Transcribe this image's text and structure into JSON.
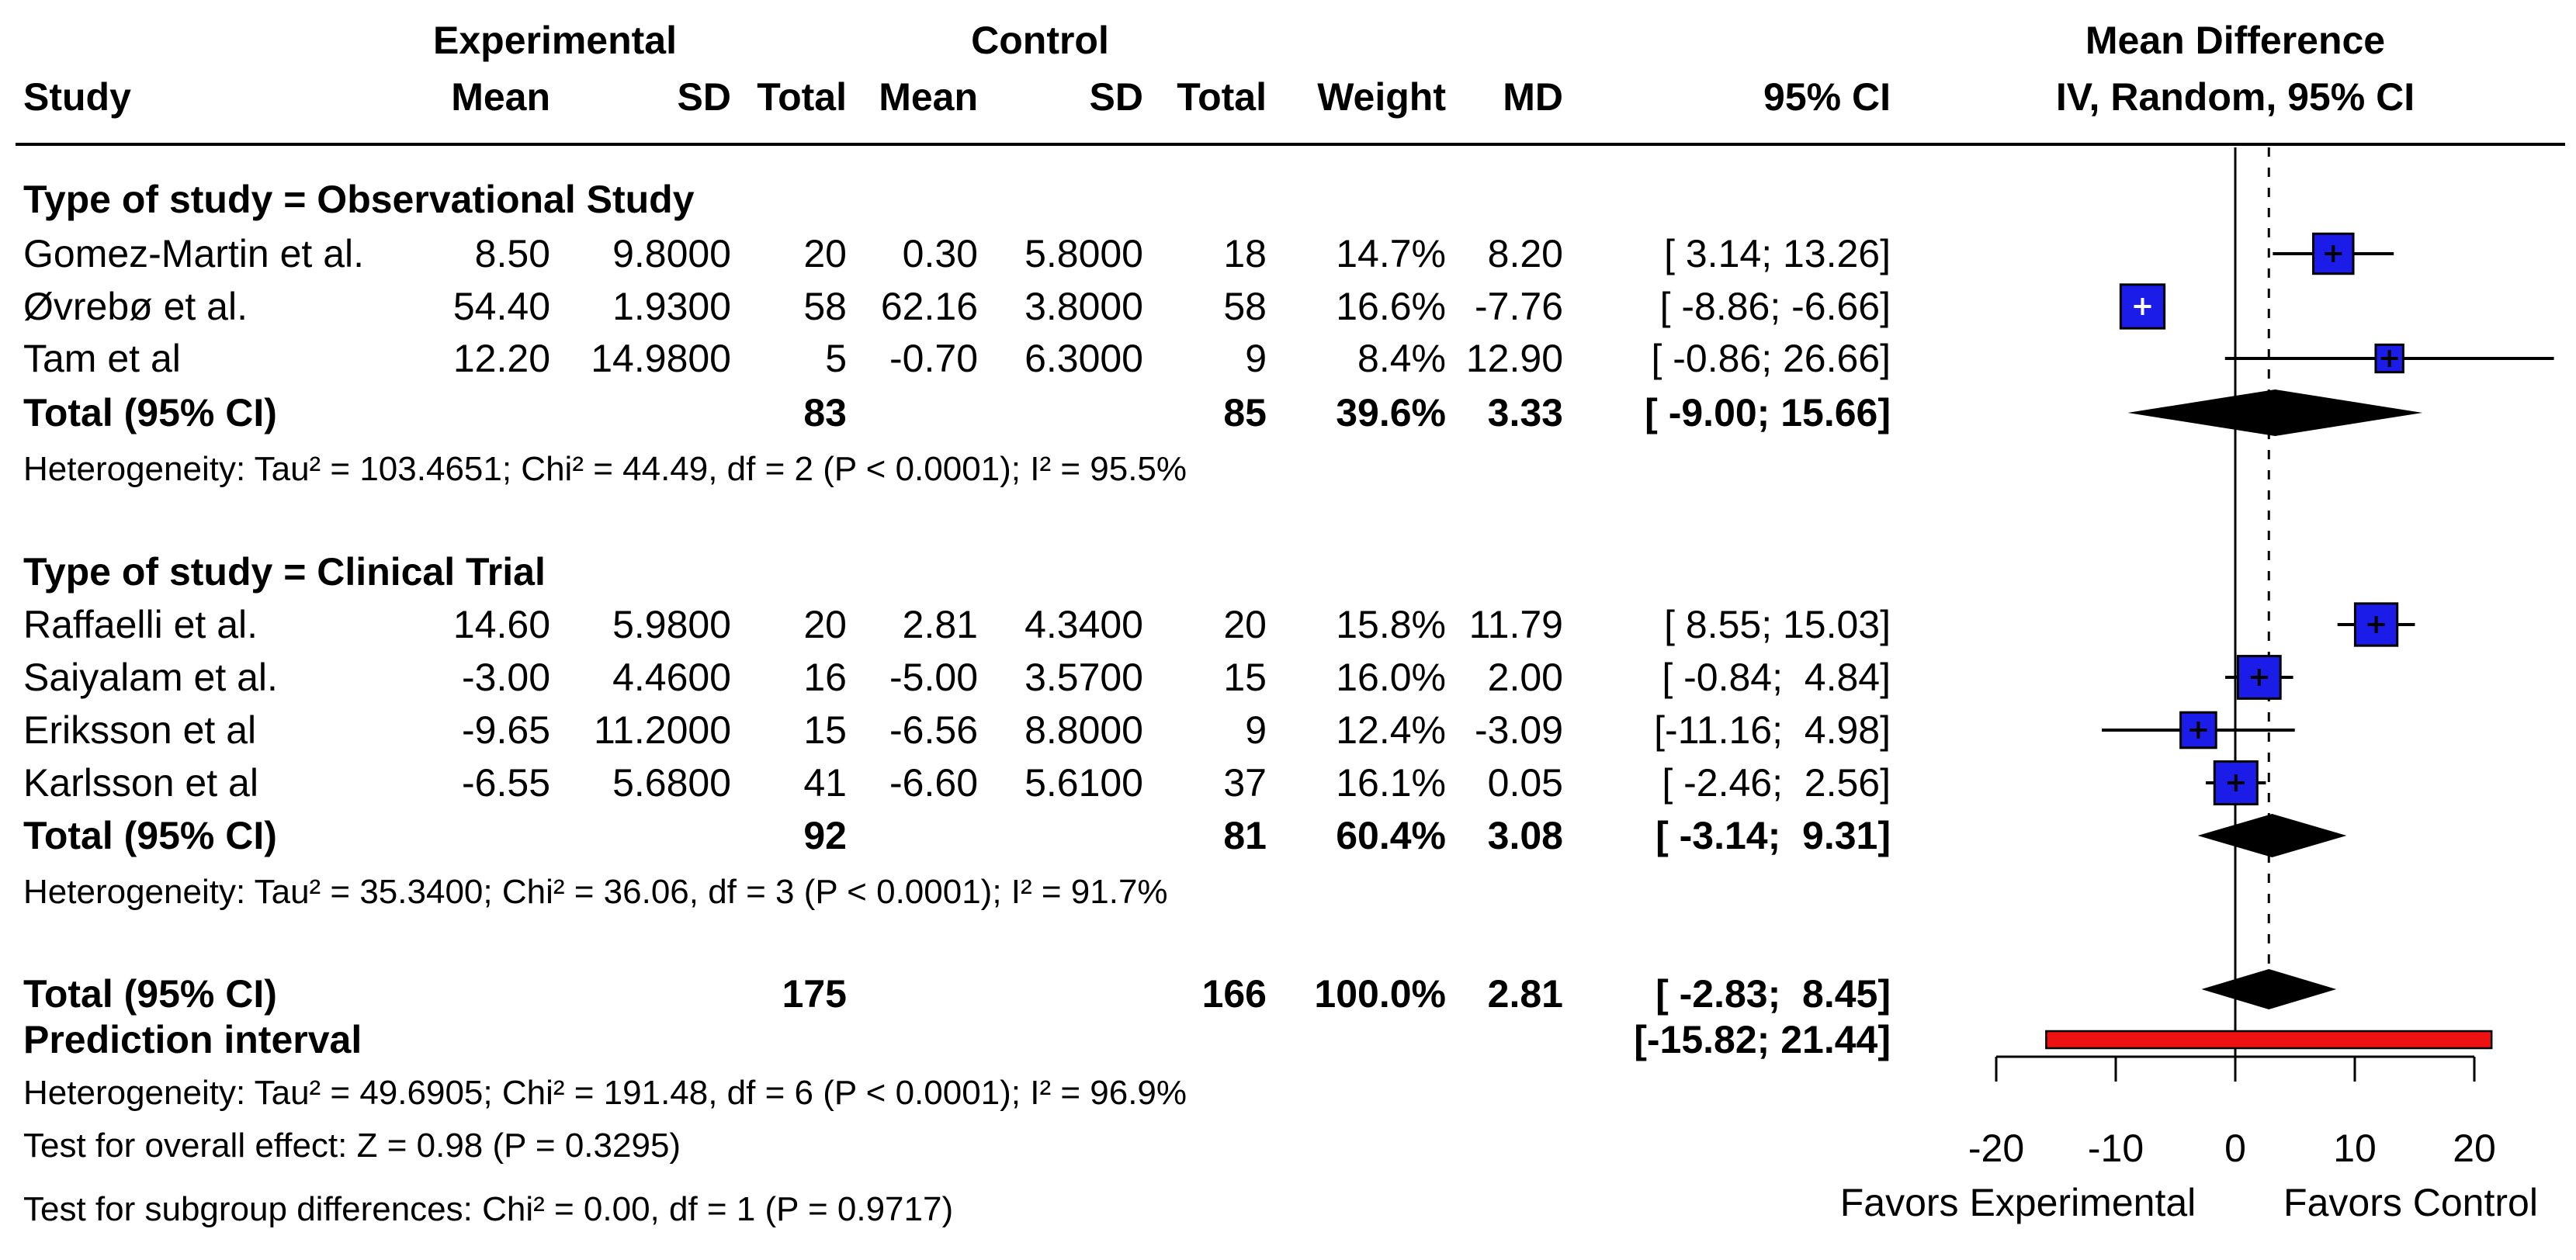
{
  "header": {
    "group_experimental": "Experimental",
    "group_control": "Control",
    "effect_title": "Mean Difference",
    "effect_subtitle": "IV, Random, 95% CI",
    "col_study": "Study",
    "col_mean": "Mean",
    "col_sd": "SD",
    "col_total": "Total",
    "col_mean2": "Mean",
    "col_sd2": "SD",
    "col_total2": "Total",
    "col_weight": "Weight",
    "col_md": "MD",
    "col_ci": "95% CI"
  },
  "groups": [
    {
      "title": "Type of study = Observational Study",
      "studies": [
        {
          "name": "Gomez-Martin et al.",
          "mean_e": "8.50",
          "sd_e": "9.8000",
          "n_e": "20",
          "mean_c": "0.30",
          "sd_c": "5.8000",
          "n_c": "18",
          "weight": "14.7%",
          "md": "8.20",
          "ci": "[ 3.14; 13.26]"
        },
        {
          "name": "Øvrebø et al.",
          "mean_e": "54.40",
          "sd_e": "1.9300",
          "n_e": "58",
          "mean_c": "62.16",
          "sd_c": "3.8000",
          "n_c": "58",
          "weight": "16.6%",
          "md": "-7.76",
          "ci": "[ -8.86; -6.66]"
        },
        {
          "name": "Tam et al",
          "mean_e": "12.20",
          "sd_e": "14.9800",
          "n_e": "5",
          "mean_c": "-0.70",
          "sd_c": "6.3000",
          "n_c": "9",
          "weight": "8.4%",
          "md": "12.90",
          "ci": "[ -0.86; 26.66]"
        }
      ],
      "total": {
        "label": "Total (95% CI)",
        "n_e": "83",
        "n_c": "85",
        "weight": "39.6%",
        "md": "3.33",
        "ci": "[ -9.00; 15.66]"
      },
      "heterogeneity": "Heterogeneity: Tau² = 103.4651; Chi² = 44.49, df = 2 (P < 0.0001); I² = 95.5%"
    },
    {
      "title": "Type of study = Clinical Trial",
      "studies": [
        {
          "name": "Raffaelli et al.",
          "mean_e": "14.60",
          "sd_e": "5.9800",
          "n_e": "20",
          "mean_c": "2.81",
          "sd_c": "4.3400",
          "n_c": "20",
          "weight": "15.8%",
          "md": "11.79",
          "ci": "[ 8.55; 15.03]"
        },
        {
          "name": "Saiyalam et al.",
          "mean_e": "-3.00",
          "sd_e": "4.4600",
          "n_e": "16",
          "mean_c": "-5.00",
          "sd_c": "3.5700",
          "n_c": "15",
          "weight": "16.0%",
          "md": "2.00",
          "ci": "[ -0.84;  4.84]"
        },
        {
          "name": "Eriksson et al",
          "mean_e": "-9.65",
          "sd_e": "11.2000",
          "n_e": "15",
          "mean_c": "-6.56",
          "sd_c": "8.8000",
          "n_c": "9",
          "weight": "12.4%",
          "md": "-3.09",
          "ci": "[-11.16;  4.98]"
        },
        {
          "name": "Karlsson et al",
          "mean_e": "-6.55",
          "sd_e": "5.6800",
          "n_e": "41",
          "mean_c": "-6.60",
          "sd_c": "5.6100",
          "n_c": "37",
          "weight": "16.1%",
          "md": "0.05",
          "ci": "[ -2.46;  2.56]"
        }
      ],
      "total": {
        "label": "Total (95% CI)",
        "n_e": "92",
        "n_c": "81",
        "weight": "60.4%",
        "md": "3.08",
        "ci": "[ -3.14;  9.31]"
      },
      "heterogeneity": "Heterogeneity: Tau² = 35.3400; Chi² = 36.06, df = 3 (P < 0.0001); I² = 91.7%"
    }
  ],
  "overall": {
    "label": "Total (95% CI)",
    "n_e": "175",
    "n_c": "166",
    "weight": "100.0%",
    "md": "2.81",
    "ci": "[ -2.83;  8.45]"
  },
  "prediction": {
    "label": "Prediction interval",
    "ci": "[-15.82; 21.44]"
  },
  "footer": {
    "heterogeneity": "Heterogeneity: Tau² = 49.6905; Chi² = 191.48, df = 6 (P < 0.0001); I² = 96.9%",
    "overall_effect": "Test for overall effect: Z = 0.98 (P = 0.3295)",
    "subgroup_diff": "Test for subgroup differences: Chi² = 0.00, df = 1 (P = 0.9717)"
  },
  "axis": {
    "ticks": [
      "-20",
      "-10",
      "0",
      "10",
      "20"
    ],
    "label_left": "Favors Experimental",
    "label_right": "Favors Control"
  },
  "chart_data": {
    "type": "scatter",
    "subtype": "forest-plot",
    "title": "Mean Difference",
    "xlabel": "IV, Random, 95% CI",
    "x_ticks": [
      -20,
      -10,
      0,
      10,
      20
    ],
    "xlim": [
      -20,
      27
    ],
    "zero_line": 0,
    "overall_line": 2.81,
    "groups": [
      {
        "name": "Observational Study",
        "studies": [
          {
            "name": "Gomez-Martin et al.",
            "md": 8.2,
            "lo": 3.14,
            "hi": 13.26,
            "weight": 14.7
          },
          {
            "name": "Øvrebø et al.",
            "md": -7.76,
            "lo": -8.86,
            "hi": -6.66,
            "weight": 16.6
          },
          {
            "name": "Tam et al",
            "md": 12.9,
            "lo": -0.86,
            "hi": 26.66,
            "weight": 8.4
          }
        ],
        "diamond": {
          "md": 3.33,
          "lo": -9.0,
          "hi": 15.66
        }
      },
      {
        "name": "Clinical Trial",
        "studies": [
          {
            "name": "Raffaelli et al.",
            "md": 11.79,
            "lo": 8.55,
            "hi": 15.03,
            "weight": 15.8
          },
          {
            "name": "Saiyalam et al.",
            "md": 2.0,
            "lo": -0.84,
            "hi": 4.84,
            "weight": 16.0
          },
          {
            "name": "Eriksson et al",
            "md": -3.09,
            "lo": -11.16,
            "hi": 4.98,
            "weight": 12.4
          },
          {
            "name": "Karlsson et al",
            "md": 0.05,
            "lo": -2.46,
            "hi": 2.56,
            "weight": 16.1
          }
        ],
        "diamond": {
          "md": 3.08,
          "lo": -3.14,
          "hi": 9.31
        }
      }
    ],
    "overall_diamond": {
      "md": 2.81,
      "lo": -2.83,
      "hi": 8.45
    },
    "prediction_interval": {
      "lo": -15.82,
      "hi": 21.44
    },
    "colors": {
      "square": "#1c1ce8",
      "diamond": "#000000",
      "prediction": "#ee1111",
      "line": "#000000"
    }
  }
}
